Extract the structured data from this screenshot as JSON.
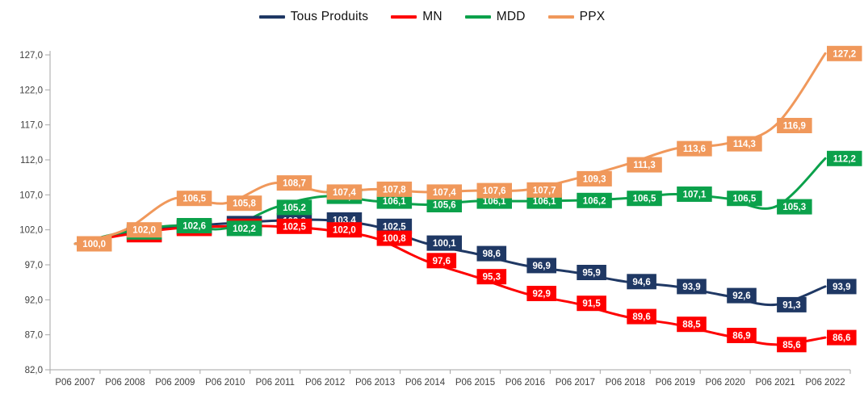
{
  "legend": {
    "position": "top-center"
  },
  "axis": {
    "y_ticks": [
      "127,0",
      "122,0",
      "117,0",
      "112,0",
      "107,0",
      "102,0",
      "97,0",
      "92,0",
      "87,0",
      "82,0"
    ],
    "axis_color": "#A6A6A6",
    "tick_label_color": "#404040"
  },
  "chart_data": {
    "type": "line",
    "smooth": true,
    "grid": false,
    "legend_position": "top",
    "title": "",
    "xlabel": "",
    "ylabel": "",
    "ylim": [
      82,
      127
    ],
    "y_tick_step": 5,
    "x": [
      "P06 2007",
      "P06 2008",
      "P06 2009",
      "P06 2010",
      "P06 2011",
      "P06 2012",
      "P06 2013",
      "P06 2014",
      "P06 2015",
      "P06 2016",
      "P06 2017",
      "P06 2018",
      "P06 2019",
      "P06 2020",
      "P06 2021",
      "P06 2022"
    ],
    "series": [
      {
        "name": "Tous Produits",
        "color": "#1F3864",
        "values": [
          100.0,
          101.5,
          102.4,
          102.9,
          103.3,
          103.4,
          102.5,
          100.1,
          98.6,
          96.9,
          95.9,
          94.6,
          93.9,
          92.6,
          91.3,
          93.9
        ]
      },
      {
        "name": "MN",
        "color": "#FE0000",
        "values": [
          100.0,
          101.3,
          102.2,
          102.5,
          102.5,
          102.0,
          100.8,
          97.6,
          95.3,
          92.9,
          91.5,
          89.6,
          88.5,
          86.9,
          85.6,
          86.6
        ]
      },
      {
        "name": "MDD",
        "color": "#0BA14B",
        "values": [
          100.0,
          101.7,
          102.6,
          102.2,
          105.2,
          106.8,
          106.1,
          105.6,
          106.1,
          106.1,
          106.2,
          106.5,
          107.1,
          106.5,
          105.3,
          112.2
        ]
      },
      {
        "name": "PPX",
        "color": "#F0985B",
        "values": [
          100.0,
          102.0,
          106.5,
          105.8,
          108.7,
          107.4,
          107.8,
          107.4,
          107.6,
          107.7,
          109.3,
          111.3,
          113.6,
          114.3,
          116.9,
          127.2
        ]
      }
    ],
    "data_labels": {
      "shown_for_every_point": true,
      "format": "one-decimal-comma",
      "text_color": "#FFFFFF",
      "position": "right-of-point"
    }
  }
}
